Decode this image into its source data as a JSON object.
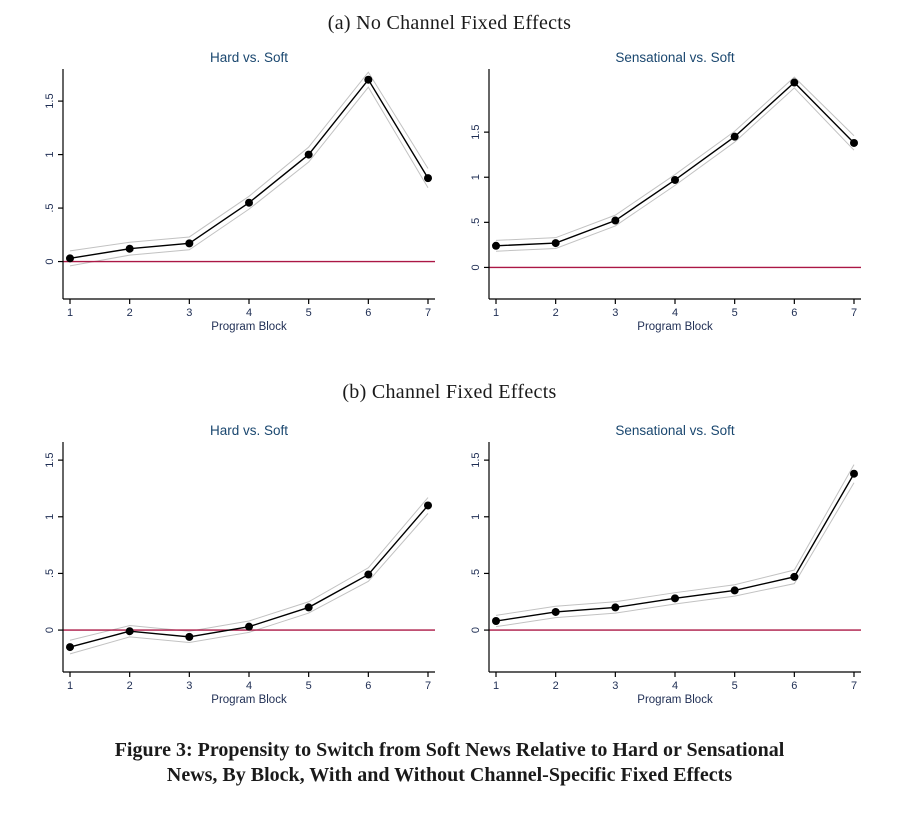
{
  "panels": [
    {
      "title": "(a) No Channel Fixed Effects"
    },
    {
      "title": "(b) Channel Fixed Effects"
    }
  ],
  "caption": {
    "line1": "Figure 3: Propensity to Switch from Soft News Relative to Hard or Sensational",
    "line2": "News, By Block, With and Without Channel-Specific Fixed Effects"
  },
  "colors": {
    "chart_title_navy": "#1a476f",
    "tick_label_navy": "#1e2d53",
    "refline_red": "#ab1745",
    "ci_gray": "#c2c2c2",
    "series_black": "#000000",
    "axis_black": "#000000"
  },
  "chart_data": [
    {
      "id": "no-fe-hard-vs-soft",
      "type": "line",
      "panel": "(a) No Channel Fixed Effects",
      "title": "Hard vs. Soft",
      "xlabel": "Program Block",
      "x": [
        1,
        2,
        3,
        4,
        5,
        6,
        7
      ],
      "series": [
        {
          "name": "estimate",
          "values": [
            0.03,
            0.12,
            0.17,
            0.55,
            1.0,
            1.7,
            0.78
          ]
        },
        {
          "name": "ci_upper",
          "values": [
            0.1,
            0.18,
            0.23,
            0.61,
            1.07,
            1.77,
            0.87
          ]
        },
        {
          "name": "ci_lower",
          "values": [
            -0.04,
            0.06,
            0.11,
            0.49,
            0.93,
            1.63,
            0.69
          ]
        }
      ],
      "yticks": [
        0,
        0.5,
        1,
        1.5
      ],
      "ytick_labels": [
        "0",
        ".5",
        "1",
        "1.5"
      ],
      "ylim": [
        -0.35,
        1.8
      ],
      "refline_y": 0,
      "grid": false,
      "legend": "none"
    },
    {
      "id": "no-fe-sensational-vs-soft",
      "type": "line",
      "panel": "(a) No Channel Fixed Effects",
      "title": "Sensational vs. Soft",
      "xlabel": "Program Block",
      "x": [
        1,
        2,
        3,
        4,
        5,
        6,
        7
      ],
      "series": [
        {
          "name": "estimate",
          "values": [
            0.24,
            0.27,
            0.52,
            0.97,
            1.45,
            2.05,
            1.38
          ]
        },
        {
          "name": "ci_upper",
          "values": [
            0.3,
            0.33,
            0.58,
            1.03,
            1.51,
            2.11,
            1.46
          ]
        },
        {
          "name": "ci_lower",
          "values": [
            0.18,
            0.21,
            0.46,
            0.91,
            1.39,
            1.99,
            1.3
          ]
        }
      ],
      "yticks": [
        0,
        0.5,
        1,
        1.5
      ],
      "ytick_labels": [
        "0",
        ".5",
        "1",
        "1.5"
      ],
      "ylim": [
        -0.35,
        2.2
      ],
      "refline_y": 0,
      "grid": false,
      "legend": "none"
    },
    {
      "id": "fe-hard-vs-soft",
      "type": "line",
      "panel": "(b) Channel Fixed Effects",
      "title": "Hard vs. Soft",
      "xlabel": "Program Block",
      "x": [
        1,
        2,
        3,
        4,
        5,
        6,
        7
      ],
      "series": [
        {
          "name": "estimate",
          "values": [
            -0.15,
            -0.01,
            -0.06,
            0.03,
            0.2,
            0.49,
            1.1
          ]
        },
        {
          "name": "ci_upper",
          "values": [
            -0.09,
            0.04,
            -0.01,
            0.08,
            0.25,
            0.55,
            1.17
          ]
        },
        {
          "name": "ci_lower",
          "values": [
            -0.21,
            -0.06,
            -0.11,
            -0.02,
            0.15,
            0.43,
            1.03
          ]
        }
      ],
      "yticks": [
        0,
        0.5,
        1,
        1.5
      ],
      "ytick_labels": [
        "0",
        ".5",
        "1",
        "1.5"
      ],
      "ylim": [
        -0.37,
        1.66
      ],
      "refline_y": 0,
      "grid": false,
      "legend": "none"
    },
    {
      "id": "fe-sensational-vs-soft",
      "type": "line",
      "panel": "(b) Channel Fixed Effects",
      "title": "Sensational vs. Soft",
      "xlabel": "Program Block",
      "x": [
        1,
        2,
        3,
        4,
        5,
        6,
        7
      ],
      "series": [
        {
          "name": "estimate",
          "values": [
            0.08,
            0.16,
            0.2,
            0.28,
            0.35,
            0.47,
            1.38
          ]
        },
        {
          "name": "ci_upper",
          "values": [
            0.13,
            0.21,
            0.25,
            0.33,
            0.4,
            0.53,
            1.46
          ]
        },
        {
          "name": "ci_lower",
          "values": [
            0.03,
            0.11,
            0.15,
            0.23,
            0.3,
            0.41,
            1.3
          ]
        }
      ],
      "yticks": [
        0,
        0.5,
        1,
        1.5
      ],
      "ytick_labels": [
        "0",
        ".5",
        "1",
        "1.5"
      ],
      "ylim": [
        -0.37,
        1.66
      ],
      "refline_y": 0,
      "grid": false,
      "legend": "none"
    }
  ]
}
